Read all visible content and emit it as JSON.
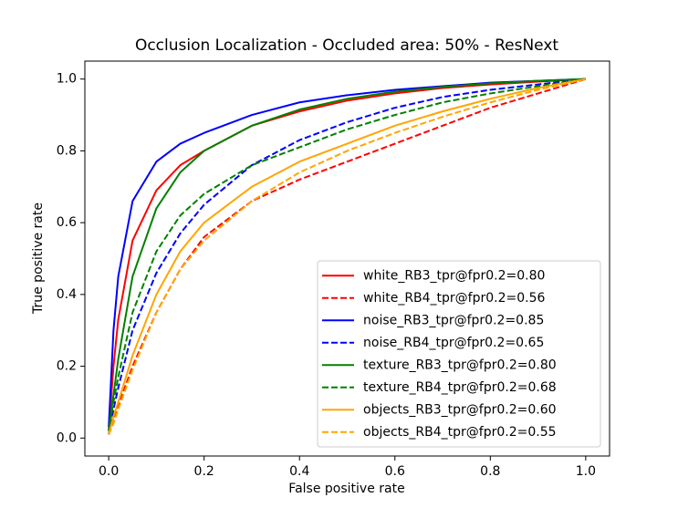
{
  "chart_data": {
    "type": "line",
    "title": "Occlusion Localization - Occluded area: 50% - ResNext",
    "x_label": "False positive rate",
    "y_label": "True positive rate",
    "x": [
      0,
      0.01,
      0.02,
      0.05,
      0.1,
      0.15,
      0.2,
      0.3,
      0.4,
      0.5,
      0.6,
      0.7,
      0.8,
      0.9,
      1
    ],
    "series": [
      {
        "name": "white_RB3_tpr@fpr0.2=0.80",
        "color": "#ff0000",
        "linestyle": "solid",
        "values": [
          0.02,
          0.2,
          0.33,
          0.55,
          0.69,
          0.76,
          0.8,
          0.87,
          0.91,
          0.94,
          0.96,
          0.975,
          0.985,
          0.993,
          1
        ]
      },
      {
        "name": "white_RB4_tpr@fpr0.2=0.56",
        "color": "#ff0000",
        "linestyle": "dashed",
        "values": [
          0.01,
          0.05,
          0.09,
          0.2,
          0.35,
          0.47,
          0.56,
          0.66,
          0.72,
          0.77,
          0.82,
          0.87,
          0.92,
          0.96,
          1
        ]
      },
      {
        "name": "noise_RB3_tpr@fpr0.2=0.85",
        "color": "#0000ff",
        "linestyle": "solid",
        "values": [
          0.03,
          0.3,
          0.45,
          0.66,
          0.77,
          0.82,
          0.85,
          0.9,
          0.935,
          0.955,
          0.97,
          0.98,
          0.99,
          0.995,
          1
        ]
      },
      {
        "name": "noise_RB4_tpr@fpr0.2=0.65",
        "color": "#0000ff",
        "linestyle": "dashed",
        "values": [
          0.01,
          0.08,
          0.14,
          0.3,
          0.46,
          0.57,
          0.65,
          0.76,
          0.83,
          0.88,
          0.92,
          0.95,
          0.97,
          0.985,
          1
        ]
      },
      {
        "name": "texture_RB3_tpr@fpr0.2=0.80",
        "color": "#008000",
        "linestyle": "solid",
        "values": [
          0.02,
          0.12,
          0.22,
          0.45,
          0.64,
          0.74,
          0.8,
          0.87,
          0.915,
          0.945,
          0.965,
          0.978,
          0.988,
          0.995,
          1
        ]
      },
      {
        "name": "texture_RB4_tpr@fpr0.2=0.68",
        "color": "#008000",
        "linestyle": "dashed",
        "values": [
          0.02,
          0.1,
          0.17,
          0.35,
          0.52,
          0.62,
          0.68,
          0.76,
          0.81,
          0.86,
          0.9,
          0.935,
          0.96,
          0.98,
          1
        ]
      },
      {
        "name": "objects_RB3_tpr@fpr0.2=0.60",
        "color": "#ffa500",
        "linestyle": "solid",
        "values": [
          0.01,
          0.06,
          0.1,
          0.23,
          0.4,
          0.52,
          0.6,
          0.7,
          0.77,
          0.82,
          0.87,
          0.91,
          0.945,
          0.975,
          1
        ]
      },
      {
        "name": "objects_RB4_tpr@fpr0.2=0.55",
        "color": "#ffa500",
        "linestyle": "dashed",
        "values": [
          0.01,
          0.04,
          0.08,
          0.19,
          0.35,
          0.47,
          0.55,
          0.66,
          0.74,
          0.8,
          0.85,
          0.895,
          0.935,
          0.97,
          1
        ]
      }
    ],
    "xlim": [
      -0.05,
      1.05
    ],
    "ylim": [
      -0.05,
      1.05
    ],
    "xticks": [
      {
        "value": 0,
        "label": "0.0"
      },
      0.2,
      0.4,
      0.6,
      0.8,
      {
        "value": 1,
        "label": "1.0"
      }
    ],
    "yticks": [
      {
        "value": 0,
        "label": "0.0"
      },
      0.2,
      0.4,
      0.6,
      0.8,
      {
        "value": 1,
        "label": "1.0"
      }
    ],
    "grid": false,
    "legend_position": "lower right"
  }
}
